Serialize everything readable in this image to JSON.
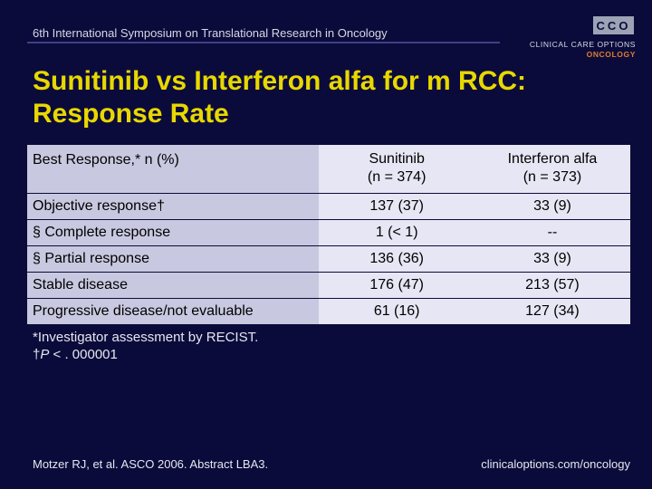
{
  "header": {
    "conference": "6th International Symposium on Translational Research in Oncology",
    "logo_mark": "CCO",
    "logo_line1": "CLINICAL CARE OPTIONS",
    "logo_line2": "ONCOLOGY"
  },
  "title": "Sunitinib vs Interferon alfa for m RCC: Response Rate",
  "table": {
    "header": {
      "col1": "Best Response,* n (%)",
      "col2_line1": "Sunitinib",
      "col2_line2": "(n = 374)",
      "col3_line1": "Interferon alfa",
      "col3_line2": "(n = 373)"
    },
    "rows": [
      {
        "label": "Objective response†",
        "sunitinib": "137 (37)",
        "interferon": "33 (9)"
      },
      {
        "label": "§ Complete response",
        "sunitinib": "1 (< 1)",
        "interferon": "--"
      },
      {
        "label": "§ Partial response",
        "sunitinib": "136 (36)",
        "interferon": "33 (9)"
      },
      {
        "label": "Stable disease",
        "sunitinib": "176 (47)",
        "interferon": "213 (57)"
      },
      {
        "label": "Progressive disease/not evaluable",
        "sunitinib": "61 (16)",
        "interferon": "127 (34)"
      }
    ]
  },
  "footnotes": {
    "line1": "*Investigator assessment by RECIST.",
    "line2_prefix": "†",
    "line2_italic": "P",
    "line2_rest": " < . 000001"
  },
  "footer": {
    "citation": "Motzer RJ, et al. ASCO 2006. Abstract LBA3.",
    "website": "clinicaloptions.com/oncology"
  }
}
